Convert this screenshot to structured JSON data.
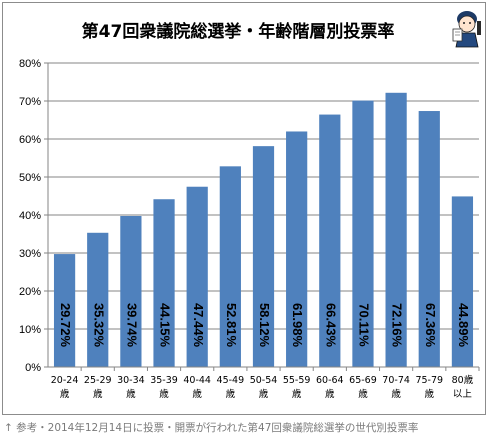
{
  "title": "第47回衆議院総選挙・年齢階層別投票率",
  "caption": "↑ 参考・2014年12月14日に投票・開票が行われた第47回衆議院総選挙の世代別投票率",
  "mascot_icon": "cartoon-character-logo",
  "chart_data": {
    "type": "bar",
    "categories": [
      [
        "20-24",
        "歳"
      ],
      [
        "25-29",
        "歳"
      ],
      [
        "30-34",
        "歳"
      ],
      [
        "35-39",
        "歳"
      ],
      [
        "40-44",
        "歳"
      ],
      [
        "45-49",
        "歳"
      ],
      [
        "50-54",
        "歳"
      ],
      [
        "55-59",
        "歳"
      ],
      [
        "60-64",
        "歳"
      ],
      [
        "65-69",
        "歳"
      ],
      [
        "70-74",
        "歳"
      ],
      [
        "75-79",
        "歳"
      ],
      [
        "80歳",
        "以上"
      ]
    ],
    "values": [
      29.72,
      35.32,
      39.74,
      44.15,
      47.44,
      52.81,
      58.12,
      61.98,
      66.43,
      70.11,
      72.16,
      67.36,
      44.89
    ],
    "data_labels": [
      "29.72%",
      "35.32%",
      "39.74%",
      "44.15%",
      "47.44%",
      "52.81%",
      "58.12%",
      "61.98%",
      "66.43%",
      "70.11%",
      "72.16%",
      "67.36%",
      "44.89%"
    ],
    "yticks": [
      "0%",
      "10%",
      "20%",
      "30%",
      "40%",
      "50%",
      "60%",
      "70%",
      "80%"
    ],
    "ylim": [
      0,
      80
    ],
    "grid": true,
    "legend": "none",
    "bar_color": "#4f81bd",
    "grid_color": "#868686"
  }
}
